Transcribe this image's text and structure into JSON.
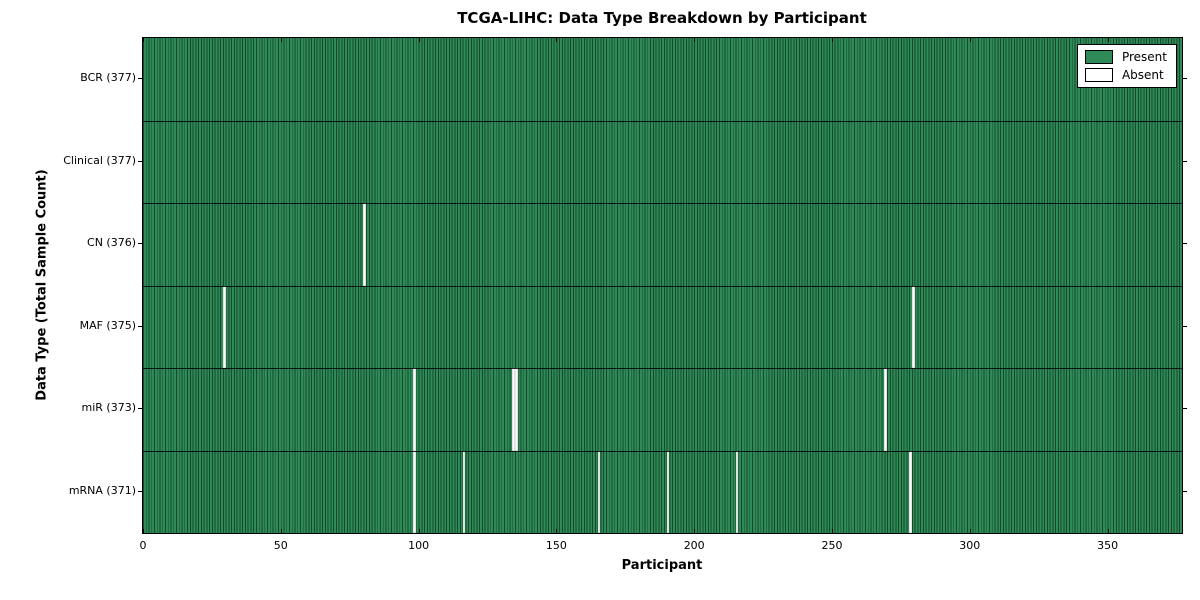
{
  "chart_data": {
    "type": "heatmap",
    "title": "TCGA-LIHC: Data Type Breakdown by Participant",
    "xlabel": "Participant",
    "ylabel": "Data Type (Total Sample Count)",
    "n_participants": 377,
    "xlim": [
      0,
      377
    ],
    "x_ticks": [
      0,
      50,
      100,
      150,
      200,
      250,
      300,
      350
    ],
    "grid": false,
    "legend_position": "upper right",
    "legend": [
      {
        "label": "Present",
        "color": "#2e8b57"
      },
      {
        "label": "Absent",
        "color": "#ffffff"
      }
    ],
    "colors": {
      "present": "#2e8b57",
      "present_edge": "#16482c",
      "absent": "#ffffff",
      "frame": "#000000"
    },
    "rows": [
      {
        "data_type": "BCR",
        "label": "BCR (377)",
        "total": 377,
        "absent_participants": []
      },
      {
        "data_type": "Clinical",
        "label": "Clinical (377)",
        "total": 377,
        "absent_participants": []
      },
      {
        "data_type": "CN",
        "label": "CN (376)",
        "total": 376,
        "absent_participants": [
          80
        ]
      },
      {
        "data_type": "MAF",
        "label": "MAF (375)",
        "total": 375,
        "absent_participants": [
          29,
          279
        ]
      },
      {
        "data_type": "miR",
        "label": "miR (373)",
        "total": 373,
        "absent_participants": [
          98,
          134,
          135,
          269
        ]
      },
      {
        "data_type": "mRNA",
        "label": "mRNA (371)",
        "total": 371,
        "absent_participants": [
          98,
          116,
          165,
          190,
          215,
          278
        ]
      }
    ]
  }
}
